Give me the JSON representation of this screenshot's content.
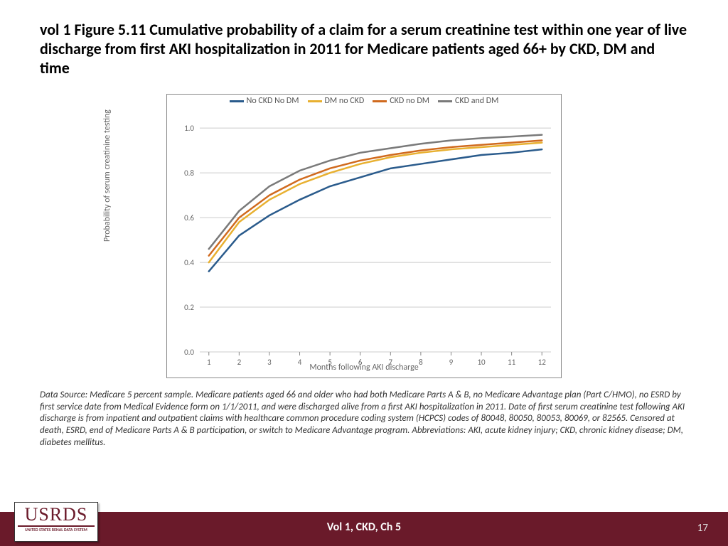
{
  "title": {
    "text": "vol 1 Figure 5.11  Cumulative probability of a claim for a serum creatinine test within one year of live discharge from first AKI hospitalization in 2011 for Medicare patients aged 66+ by CKD, DM and time",
    "fontsize": 22,
    "weight": 700,
    "color": "#000000"
  },
  "chart": {
    "type": "line",
    "background_color": "#ffffff",
    "grid_color": "#cccccc",
    "x": [
      1,
      2,
      3,
      4,
      5,
      6,
      7,
      8,
      9,
      10,
      11,
      12
    ],
    "xlim": [
      0.7,
      12.3
    ],
    "ylim": [
      0.0,
      1.08
    ],
    "yticks": [
      0.0,
      0.2,
      0.4,
      0.6,
      0.8,
      1.0
    ],
    "xticks": [
      1,
      2,
      3,
      4,
      5,
      6,
      7,
      8,
      9,
      10,
      11,
      12
    ],
    "xlabel": "Months following AKI discharge",
    "ylabel": "Probability of serum creatinine testing",
    "axis_label_color": "#666666",
    "axis_label_fontsize": 12,
    "tick_fontsize": 11,
    "line_width": 2.5,
    "series": [
      {
        "name": "No CKD No DM",
        "color": "#2a5b8c",
        "y": [
          0.36,
          0.52,
          0.61,
          0.68,
          0.74,
          0.78,
          0.82,
          0.84,
          0.86,
          0.88,
          0.89,
          0.905
        ]
      },
      {
        "name": "DM no CKD",
        "color": "#e8b030",
        "y": [
          0.4,
          0.58,
          0.68,
          0.75,
          0.8,
          0.84,
          0.87,
          0.89,
          0.905,
          0.915,
          0.925,
          0.935
        ]
      },
      {
        "name": "CKD no DM",
        "color": "#d06a1e",
        "y": [
          0.43,
          0.6,
          0.7,
          0.77,
          0.82,
          0.855,
          0.88,
          0.9,
          0.915,
          0.925,
          0.935,
          0.945
        ]
      },
      {
        "name": "CKD and DM",
        "color": "#7a7a7a",
        "y": [
          0.46,
          0.63,
          0.74,
          0.81,
          0.855,
          0.89,
          0.91,
          0.93,
          0.945,
          0.955,
          0.962,
          0.97
        ]
      }
    ]
  },
  "footnote": {
    "text": "Data Source: Medicare 5 percent sample. Medicare patients aged 66 and older who had both Medicare Parts A & B, no Medicare Advantage plan (Part C/HMO), no ESRD by first service date from Medical Evidence form on 1/1/2011, and were discharged alive from a first AKI hospitalization in 2011. Date of first serum creatinine test following AKI discharge is from inpatient and outpatient claims with healthcare common procedure coding system (HCPCS) codes of 80048, 80050, 80053, 80069, or 82565. Censored at death, ESRD, end of Medicare Parts A & B participation, or switch to Medicare Advantage program. Abbreviations: AKI, acute kidney injury; CKD, chronic kidney disease; DM, diabetes mellitus.",
    "fontsize": 13,
    "color": "#333333"
  },
  "footer": {
    "center": "Vol 1, CKD, Ch 5",
    "page": "17",
    "bg": "#6a1a2a",
    "fg": "#ffffff"
  },
  "logo": {
    "main": "USRDS",
    "sub": "UNITED STATES RENAL DATA SYSTEM",
    "color": "#6a1a2a"
  }
}
